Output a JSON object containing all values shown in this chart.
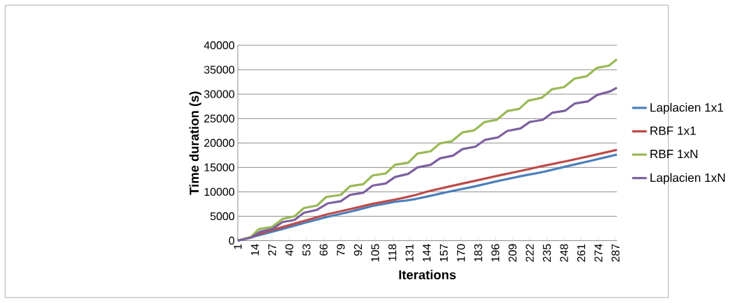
{
  "chart_data": {
    "type": "line",
    "xlabel": "Iterations",
    "ylabel": "Time duration (s)",
    "xlim": [
      1,
      288
    ],
    "xticks": [
      1,
      14,
      27,
      40,
      53,
      66,
      79,
      92,
      105,
      118,
      131,
      144,
      157,
      170,
      183,
      196,
      209,
      222,
      235,
      248,
      261,
      274,
      287
    ],
    "ylim": [
      0,
      40000
    ],
    "yticks": [
      0,
      5000,
      10000,
      15000,
      20000,
      25000,
      30000,
      35000,
      40000
    ],
    "grid": "y",
    "legend": "right",
    "marker": "none",
    "line_style": "solid",
    "series": [
      {
        "name": "Laplacien 1x1",
        "color": "#4a7ebb",
        "x": [
          1,
          11,
          17,
          35,
          51,
          68,
          86,
          103,
          120,
          128,
          136,
          145,
          162,
          181,
          197,
          216,
          233,
          252,
          269,
          288
        ],
        "values": [
          0,
          700,
          1100,
          2410,
          3600,
          4820,
          5920,
          7100,
          7980,
          8200,
          8550,
          9080,
          10090,
          11140,
          12150,
          13250,
          14120,
          15350,
          16400,
          17630
        ]
      },
      {
        "name": "RBF 1x1",
        "color": "#be4b48",
        "x": [
          1,
          11,
          17,
          35,
          51,
          68,
          86,
          103,
          120,
          128,
          136,
          145,
          162,
          181,
          197,
          216,
          233,
          252,
          269,
          288
        ],
        "values": [
          0,
          750,
          1400,
          2800,
          4040,
          5350,
          6450,
          7540,
          8420,
          8860,
          9380,
          10090,
          11140,
          12280,
          13250,
          14340,
          15350,
          16400,
          17410,
          18600
        ]
      },
      {
        "name": "RBF 1xN",
        "color": "#98b954",
        "x": [
          1,
          11,
          17,
          27,
          35,
          44,
          51,
          61,
          68,
          79,
          86,
          96,
          103,
          113,
          120,
          130,
          137,
          147,
          154,
          163,
          171,
          180,
          188,
          197,
          205,
          214,
          221,
          231,
          239,
          248,
          256,
          265,
          273,
          282,
          288
        ],
        "values": [
          0,
          750,
          2370,
          2800,
          4470,
          5000,
          6670,
          7200,
          8950,
          9380,
          11140,
          11580,
          13330,
          13770,
          15530,
          15960,
          17850,
          18290,
          19910,
          20350,
          22150,
          22590,
          24300,
          24740,
          26540,
          26970,
          28680,
          29250,
          31010,
          31450,
          33200,
          33640,
          35390,
          35830,
          37140
        ]
      },
      {
        "name": "Laplacien 1xN",
        "color": "#7d60a0",
        "x": [
          1,
          11,
          18,
          27,
          35,
          44,
          51,
          61,
          69,
          79,
          86,
          96,
          103,
          113,
          120,
          130,
          137,
          147,
          154,
          164,
          171,
          181,
          188,
          198,
          205,
          215,
          222,
          232,
          239,
          249,
          256,
          266,
          273,
          283,
          288
        ],
        "values": [
          0,
          600,
          1840,
          2370,
          3820,
          4250,
          5700,
          6320,
          7630,
          8070,
          9380,
          9820,
          11270,
          11710,
          13030,
          13680,
          15000,
          15530,
          16840,
          17410,
          18730,
          19250,
          20620,
          21140,
          22460,
          22980,
          24300,
          24740,
          26180,
          26620,
          28070,
          28510,
          29820,
          30570,
          31320
        ]
      }
    ]
  }
}
